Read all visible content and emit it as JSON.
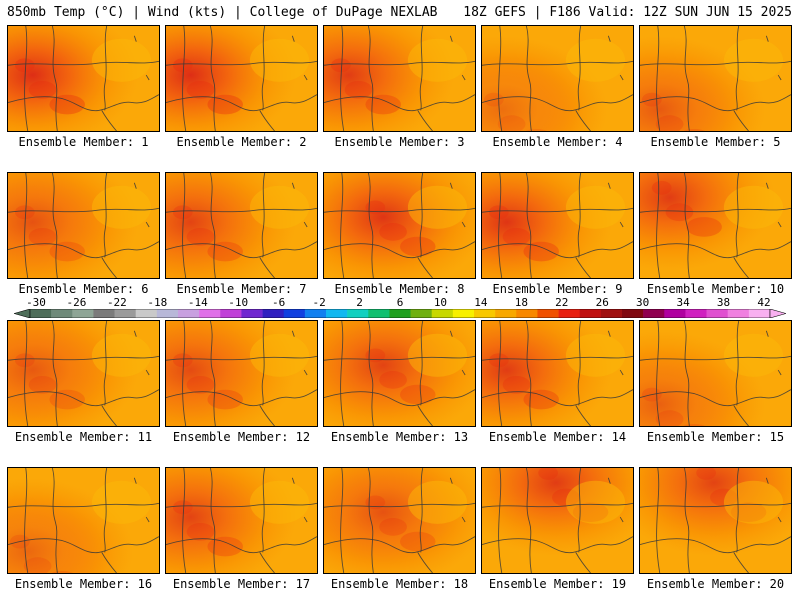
{
  "header": {
    "left": "850mb Temp (°C) | Wind (kts) | College of DuPage NEXLAB",
    "right": "18Z GEFS | F186 Valid: 12Z SUN JUN 15 2025"
  },
  "panels": [
    {
      "label": "Ensemble Member: 1",
      "hot": "w",
      "int": 0.85
    },
    {
      "label": "Ensemble Member: 2",
      "hot": "w",
      "int": 0.85
    },
    {
      "label": "Ensemble Member: 3",
      "hot": "w",
      "int": 0.75
    },
    {
      "label": "Ensemble Member: 4",
      "hot": "sw",
      "int": 0.4
    },
    {
      "label": "Ensemble Member: 5",
      "hot": "sw",
      "int": 0.55
    },
    {
      "label": "Ensemble Member: 6",
      "hot": "w",
      "int": 0.6
    },
    {
      "label": "Ensemble Member: 7",
      "hot": "w",
      "int": 0.7
    },
    {
      "label": "Ensemble Member: 8",
      "hot": "c",
      "int": 0.8
    },
    {
      "label": "Ensemble Member: 9",
      "hot": "w",
      "int": 0.8
    },
    {
      "label": "Ensemble Member: 10",
      "hot": "nw",
      "int": 0.75
    },
    {
      "label": "Ensemble Member: 11",
      "hot": "w",
      "int": 0.55
    },
    {
      "label": "Ensemble Member: 12",
      "hot": "w",
      "int": 0.65
    },
    {
      "label": "Ensemble Member: 13",
      "hot": "c",
      "int": 0.7
    },
    {
      "label": "Ensemble Member: 14",
      "hot": "w",
      "int": 0.75
    },
    {
      "label": "Ensemble Member: 15",
      "hot": "sw",
      "int": 0.5
    },
    {
      "label": "Ensemble Member: 16",
      "hot": "sw",
      "int": 0.45
    },
    {
      "label": "Ensemble Member: 17",
      "hot": "w",
      "int": 0.7
    },
    {
      "label": "Ensemble Member: 18",
      "hot": "c",
      "int": 0.6
    },
    {
      "label": "Ensemble Member: 19",
      "hot": "n",
      "int": 0.75
    },
    {
      "label": "Ensemble Member: 20",
      "hot": "n",
      "int": 0.7
    }
  ],
  "colorbar": {
    "ticks": [
      "-30",
      "-26",
      "-22",
      "-18",
      "-14",
      "-10",
      "-6",
      "-2",
      "2",
      "6",
      "10",
      "14",
      "18",
      "22",
      "26",
      "30",
      "34",
      "38",
      "42"
    ],
    "colors": [
      "#4e6e5a",
      "#6f8a7a",
      "#8ea596",
      "#7b7b7b",
      "#9a9a9a",
      "#c9c9c9",
      "#b8b8d8",
      "#c8a0e0",
      "#e070e8",
      "#c040d8",
      "#7028d0",
      "#3020c0",
      "#1040e0",
      "#1080f0",
      "#10b8f0",
      "#10d0c0",
      "#10c070",
      "#20a020",
      "#70b010",
      "#c8d800",
      "#f8f000",
      "#f8c800",
      "#f8a800",
      "#f88800",
      "#f05000",
      "#e82010",
      "#c01010",
      "#a01010",
      "#800810",
      "#900050",
      "#b000a0",
      "#d020c0",
      "#e050d0",
      "#f080e0",
      "#f8b0f0"
    ]
  }
}
